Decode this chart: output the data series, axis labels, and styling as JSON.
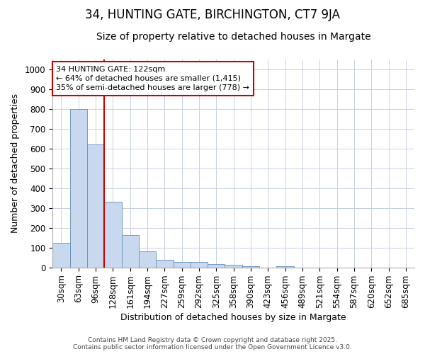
{
  "title": "34, HUNTING GATE, BIRCHINGTON, CT7 9JA",
  "subtitle": "Size of property relative to detached houses in Margate",
  "xlabel": "Distribution of detached houses by size in Margate",
  "ylabel": "Number of detached properties",
  "bar_color": "#c8d8ee",
  "bar_edge_color": "#6090b8",
  "categories": [
    "30sqm",
    "63sqm",
    "96sqm",
    "128sqm",
    "161sqm",
    "194sqm",
    "227sqm",
    "259sqm",
    "292sqm",
    "325sqm",
    "358sqm",
    "390sqm",
    "423sqm",
    "456sqm",
    "489sqm",
    "521sqm",
    "554sqm",
    "587sqm",
    "620sqm",
    "652sqm",
    "685sqm"
  ],
  "values": [
    125,
    800,
    620,
    330,
    165,
    80,
    40,
    28,
    26,
    18,
    14,
    5,
    0,
    5,
    0,
    0,
    0,
    0,
    0,
    0,
    0
  ],
  "ylim": [
    0,
    1050
  ],
  "yticks": [
    0,
    100,
    200,
    300,
    400,
    500,
    600,
    700,
    800,
    900,
    1000
  ],
  "vline_x_index": 2.5,
  "vline_color": "#cc0000",
  "annotation_text": "34 HUNTING GATE: 122sqm\n← 64% of detached houses are smaller (1,415)\n35% of semi-detached houses are larger (778) →",
  "annotation_box_color": "#ffffff",
  "annotation_box_edge": "#cc0000",
  "footer_line1": "Contains HM Land Registry data © Crown copyright and database right 2025.",
  "footer_line2": "Contains public sector information licensed under the Open Government Licence v3.0.",
  "background_color": "#ffffff",
  "grid_color": "#c8d0e0",
  "title_fontsize": 12,
  "subtitle_fontsize": 10,
  "axis_fontsize": 9,
  "tick_fontsize": 8.5
}
